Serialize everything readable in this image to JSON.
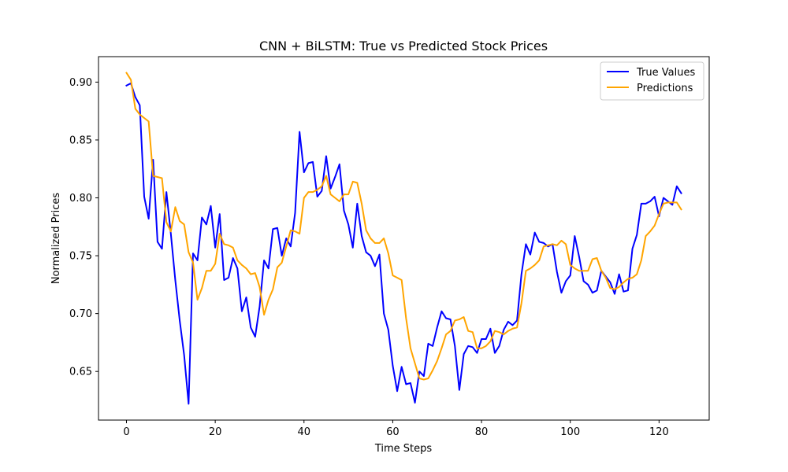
{
  "chart_data": {
    "type": "line",
    "title": "CNN + BiLSTM: True vs Predicted Stock Prices",
    "xlabel": "Time Steps",
    "ylabel": "Normalized Prices",
    "xlim": [
      -6.3,
      131.3
    ],
    "ylim": [
      0.608,
      0.922
    ],
    "xticks": [
      0,
      20,
      40,
      60,
      80,
      100,
      120
    ],
    "xtick_labels": [
      "0",
      "20",
      "40",
      "60",
      "80",
      "100",
      "120"
    ],
    "yticks": [
      0.65,
      0.7,
      0.75,
      0.8,
      0.85,
      0.9
    ],
    "ytick_labels": [
      "0.65",
      "0.70",
      "0.75",
      "0.80",
      "0.85",
      "0.90"
    ],
    "grid": false,
    "legend_position": "top-right",
    "series": [
      {
        "name": "True Values",
        "color": "#0000ff",
        "values": [
          0.897,
          0.899,
          0.887,
          0.88,
          0.801,
          0.782,
          0.833,
          0.762,
          0.756,
          0.805,
          0.769,
          0.729,
          0.694,
          0.664,
          0.622,
          0.752,
          0.746,
          0.783,
          0.777,
          0.793,
          0.757,
          0.786,
          0.729,
          0.731,
          0.748,
          0.739,
          0.702,
          0.714,
          0.688,
          0.68,
          0.706,
          0.746,
          0.739,
          0.773,
          0.774,
          0.75,
          0.765,
          0.758,
          0.787,
          0.857,
          0.822,
          0.83,
          0.831,
          0.801,
          0.806,
          0.836,
          0.808,
          0.818,
          0.829,
          0.789,
          0.777,
          0.757,
          0.795,
          0.767,
          0.753,
          0.75,
          0.741,
          0.751,
          0.7,
          0.686,
          0.655,
          0.633,
          0.654,
          0.639,
          0.64,
          0.623,
          0.65,
          0.646,
          0.674,
          0.672,
          0.688,
          0.702,
          0.696,
          0.695,
          0.672,
          0.634,
          0.665,
          0.672,
          0.671,
          0.666,
          0.678,
          0.678,
          0.687,
          0.666,
          0.672,
          0.686,
          0.693,
          0.69,
          0.694,
          0.734,
          0.76,
          0.751,
          0.77,
          0.762,
          0.761,
          0.758,
          0.76,
          0.736,
          0.718,
          0.728,
          0.733,
          0.767,
          0.749,
          0.728,
          0.725,
          0.718,
          0.72,
          0.737,
          0.732,
          0.727,
          0.717,
          0.734,
          0.719,
          0.72,
          0.756,
          0.768,
          0.795,
          0.795,
          0.797,
          0.801,
          0.784,
          0.8,
          0.797,
          0.794,
          0.81,
          0.804
        ]
      },
      {
        "name": "Predictions",
        "color": "#ffa500",
        "values": [
          0.908,
          0.902,
          0.877,
          0.872,
          0.869,
          0.866,
          0.819,
          0.818,
          0.817,
          0.779,
          0.771,
          0.792,
          0.78,
          0.777,
          0.753,
          0.744,
          0.712,
          0.722,
          0.737,
          0.737,
          0.743,
          0.769,
          0.76,
          0.759,
          0.757,
          0.746,
          0.742,
          0.739,
          0.734,
          0.735,
          0.723,
          0.699,
          0.712,
          0.721,
          0.74,
          0.744,
          0.758,
          0.772,
          0.771,
          0.769,
          0.8,
          0.805,
          0.805,
          0.807,
          0.81,
          0.819,
          0.803,
          0.8,
          0.797,
          0.803,
          0.803,
          0.814,
          0.813,
          0.795,
          0.772,
          0.765,
          0.761,
          0.761,
          0.765,
          0.752,
          0.733,
          0.731,
          0.729,
          0.696,
          0.67,
          0.657,
          0.644,
          0.643,
          0.644,
          0.651,
          0.659,
          0.67,
          0.682,
          0.685,
          0.694,
          0.695,
          0.697,
          0.685,
          0.684,
          0.67,
          0.67,
          0.672,
          0.676,
          0.685,
          0.684,
          0.682,
          0.685,
          0.687,
          0.688,
          0.709,
          0.737,
          0.739,
          0.742,
          0.746,
          0.758,
          0.759,
          0.76,
          0.759,
          0.763,
          0.76,
          0.742,
          0.739,
          0.737,
          0.737,
          0.737,
          0.747,
          0.748,
          0.737,
          0.731,
          0.722,
          0.721,
          0.723,
          0.727,
          0.73,
          0.731,
          0.734,
          0.746,
          0.767,
          0.771,
          0.776,
          0.786,
          0.795,
          0.796,
          0.796,
          0.796,
          0.79
        ]
      }
    ]
  }
}
